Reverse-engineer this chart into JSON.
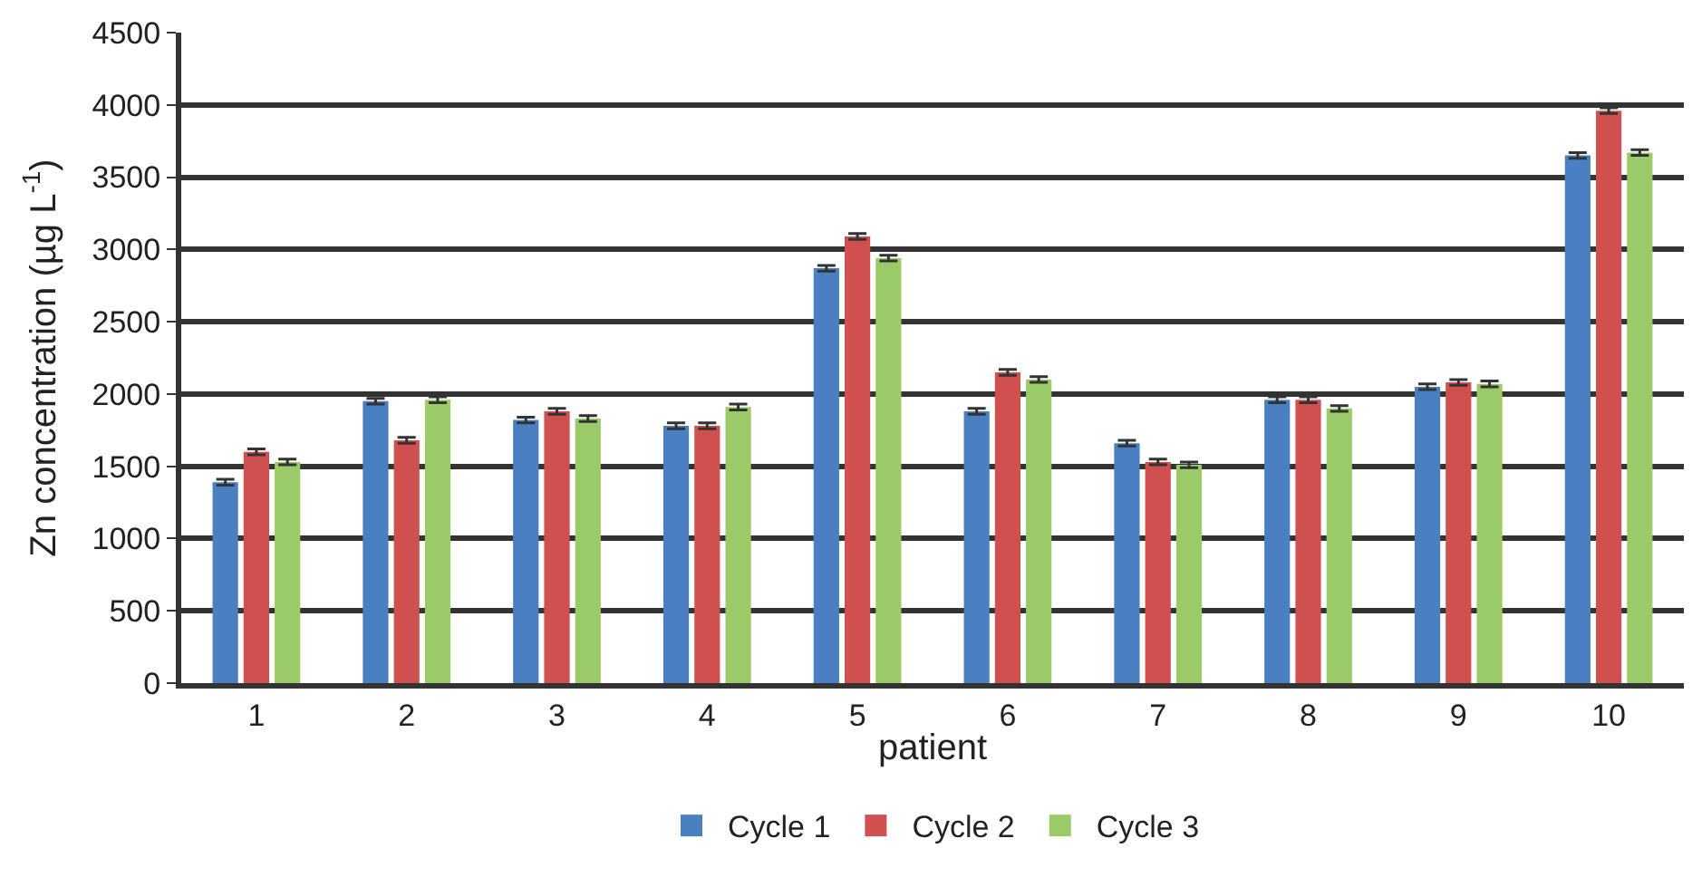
{
  "chart_data": {
    "type": "bar",
    "xlabel": "patient",
    "ylabel": "Zn concentration (µg L$^{-1}$)",
    "categories": [
      "1",
      "2",
      "3",
      "4",
      "5",
      "6",
      "7",
      "8",
      "9",
      "10"
    ],
    "series": [
      {
        "name": "Cycle 1",
        "color": "#4a7fc1",
        "values": [
          1390,
          1950,
          1820,
          1780,
          2870,
          1880,
          1660,
          1960,
          2050,
          3650
        ],
        "errors": [
          20,
          20,
          20,
          20,
          20,
          20,
          20,
          20,
          20,
          20
        ]
      },
      {
        "name": "Cycle 2",
        "color": "#d05050",
        "values": [
          1600,
          1680,
          1880,
          1780,
          3090,
          2150,
          1530,
          1960,
          2080,
          3960
        ],
        "errors": [
          20,
          20,
          20,
          20,
          20,
          20,
          20,
          20,
          20,
          20
        ]
      },
      {
        "name": "Cycle 3",
        "color": "#9acb68",
        "values": [
          1530,
          1960,
          1830,
          1910,
          2940,
          2100,
          1510,
          1900,
          2070,
          3670
        ],
        "errors": [
          20,
          20,
          20,
          20,
          20,
          20,
          20,
          20,
          20,
          20
        ]
      }
    ],
    "ylim": [
      0,
      4500
    ],
    "yticks": [
      0,
      500,
      1000,
      1500,
      2000,
      2500,
      3000,
      3500,
      4000,
      4500
    ],
    "grid": "y",
    "legend": "bottom"
  }
}
